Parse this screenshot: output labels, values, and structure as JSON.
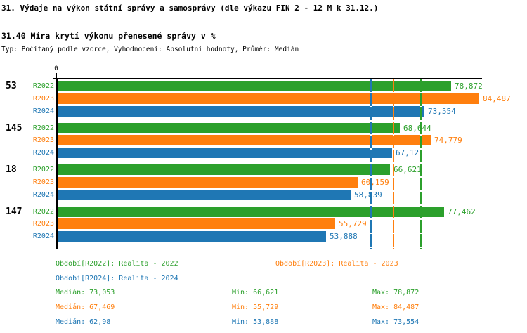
{
  "header": {
    "title": "31. Výdaje na výkon státní správy a samosprávy (dle výkazu FIN 2 - 12 M k 31.12.)",
    "subtitle": "31.40 Míra krytí výkonu přenesené správy v %",
    "meta": "Typ: Počítaný podle vzorce, Vyhodnocení: Absolutní hodnoty, Průměr: Medián"
  },
  "chart_data": {
    "type": "bar",
    "orientation": "horizontal",
    "title": "31.40 Míra krytí výkonu přenesené správy v %",
    "xlabel": "",
    "ylabel": "",
    "axis": {
      "origin_label": "0",
      "x_min": 0,
      "x_max": 85.2,
      "grid": false
    },
    "legend_position": "bottom",
    "series": [
      {
        "key": "R2022",
        "name": "Realita - 2022",
        "color": "#2ca02c",
        "median": 73.053,
        "min": 66.621,
        "max": 78.872
      },
      {
        "key": "R2023",
        "name": "Realita - 2023",
        "color": "#ff7f0e",
        "median": 67.469,
        "min": 55.729,
        "max": 84.487
      },
      {
        "key": "R2024",
        "name": "Realita - 2024",
        "color": "#1f77b4",
        "median": 62.98,
        "min": 53.888,
        "max": 73.554
      }
    ],
    "groups": [
      {
        "label": "53",
        "values": [
          78.872,
          84.487,
          73.554
        ],
        "display": [
          "78,872",
          "84,487",
          "73,554"
        ]
      },
      {
        "label": "145",
        "values": [
          68.644,
          74.779,
          67.12
        ],
        "display": [
          "68,644",
          "74,779",
          "67,12"
        ]
      },
      {
        "label": "18",
        "values": [
          66.621,
          60.159,
          58.839
        ],
        "display": [
          "66,621",
          "60,159",
          "58,839"
        ]
      },
      {
        "label": "147",
        "values": [
          77.462,
          55.729,
          53.888
        ],
        "display": [
          "77,462",
          "55,729",
          "53,888"
        ]
      }
    ],
    "median_lines": [
      {
        "series": "R2024",
        "value": 62.98,
        "color": "#1f77b4"
      },
      {
        "series": "R2023",
        "value": 67.469,
        "color": "#ff7f0e"
      },
      {
        "series": "R2022",
        "value": 73.053,
        "color": "#2ca02c"
      }
    ]
  },
  "legend": {
    "items": [
      {
        "text": "Období[R2022]: Realita - 2022",
        "color": "#2ca02c",
        "col": 1,
        "row": 1
      },
      {
        "text": "Období[R2023]: Realita - 2023",
        "color": "#ff7f0e",
        "col": 2,
        "row": 1
      },
      {
        "text": "Období[R2024]: Realita - 2024",
        "color": "#1f77b4",
        "col": 1,
        "row": 2
      }
    ]
  },
  "stats": {
    "rows": [
      {
        "series": "R2022",
        "color": "#2ca02c",
        "median": "Medián: 73,053",
        "min": "Min: 66,621",
        "max": "Max: 78,872"
      },
      {
        "series": "R2023",
        "color": "#ff7f0e",
        "median": "Medián: 67,469",
        "min": "Min: 55,729",
        "max": "Max: 84,487"
      },
      {
        "series": "R2024",
        "color": "#1f77b4",
        "median": "Medián: 62,98",
        "min": "Min: 53,888",
        "max": "Max: 73,554"
      }
    ]
  }
}
